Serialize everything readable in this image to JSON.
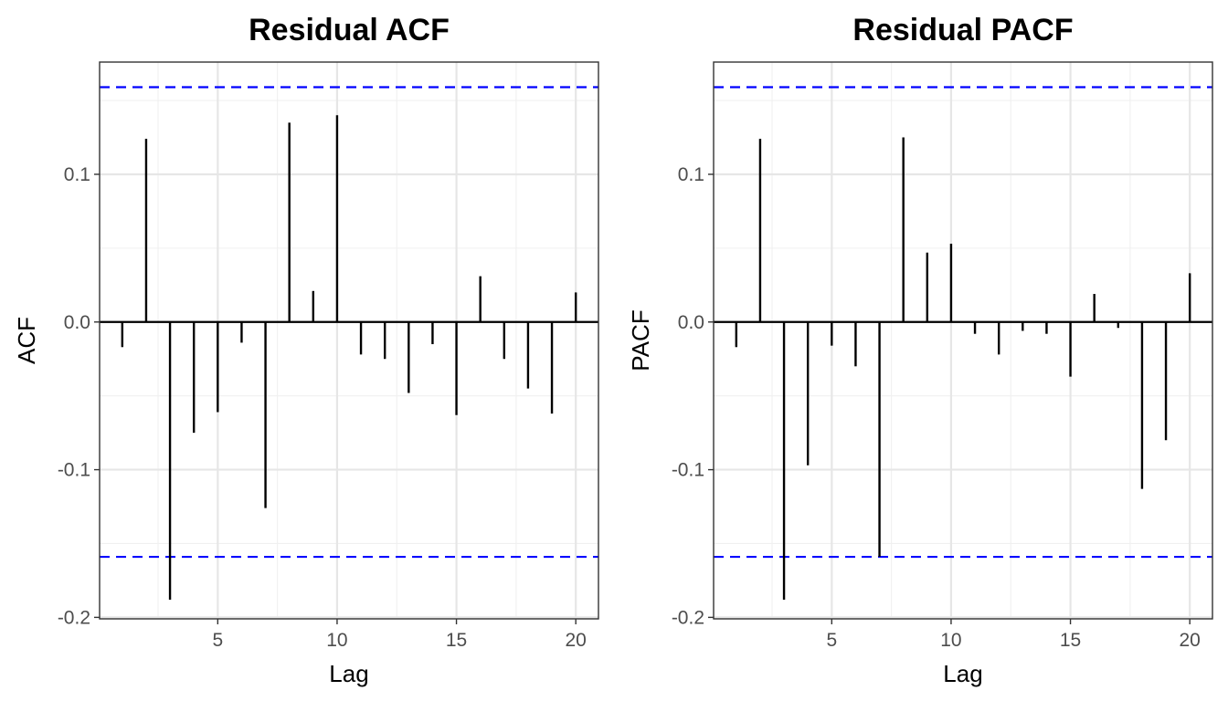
{
  "chart_data": [
    {
      "type": "bar",
      "title": "Residual ACF",
      "xlabel": "Lag",
      "ylabel": "ACF",
      "x": [
        1,
        2,
        3,
        4,
        5,
        6,
        7,
        8,
        9,
        10,
        11,
        12,
        13,
        14,
        15,
        16,
        17,
        18,
        19,
        20
      ],
      "values": [
        -0.017,
        0.124,
        -0.188,
        -0.075,
        -0.061,
        -0.014,
        -0.126,
        0.135,
        0.021,
        0.14,
        -0.022,
        -0.025,
        -0.048,
        -0.015,
        -0.063,
        0.031,
        -0.025,
        -0.045,
        -0.062,
        0.02
      ],
      "confidence_bound": 0.159,
      "xlim": [
        0.05,
        20.95
      ],
      "ylim": [
        -0.201,
        0.176
      ],
      "xticks": [
        5,
        10,
        15,
        20
      ],
      "xtick_labels": [
        "5",
        "10",
        "15",
        "20"
      ],
      "yticks": [
        -0.2,
        -0.1,
        0.0,
        0.1
      ],
      "ytick_labels": [
        "-0.2",
        "-0.1",
        "0.0",
        "0.1"
      ],
      "colors": {
        "bars": "#000000",
        "confidence": "#0000ff"
      }
    },
    {
      "type": "bar",
      "title": "Residual PACF",
      "xlabel": "Lag",
      "ylabel": "PACF",
      "x": [
        1,
        2,
        3,
        4,
        5,
        6,
        7,
        8,
        9,
        10,
        11,
        12,
        13,
        14,
        15,
        16,
        17,
        18,
        19,
        20
      ],
      "values": [
        -0.017,
        0.124,
        -0.188,
        -0.097,
        -0.016,
        -0.03,
        -0.159,
        0.125,
        0.047,
        0.053,
        -0.008,
        -0.022,
        -0.006,
        -0.008,
        -0.037,
        0.019,
        -0.004,
        -0.113,
        -0.08,
        0.033
      ],
      "confidence_bound": 0.159,
      "xlim": [
        0.05,
        20.95
      ],
      "ylim": [
        -0.201,
        0.176
      ],
      "xticks": [
        5,
        10,
        15,
        20
      ],
      "xtick_labels": [
        "5",
        "10",
        "15",
        "20"
      ],
      "yticks": [
        -0.2,
        -0.1,
        0.0,
        0.1
      ],
      "ytick_labels": [
        "-0.2",
        "-0.1",
        "0.0",
        "0.1"
      ],
      "colors": {
        "bars": "#000000",
        "confidence": "#0000ff"
      }
    }
  ]
}
